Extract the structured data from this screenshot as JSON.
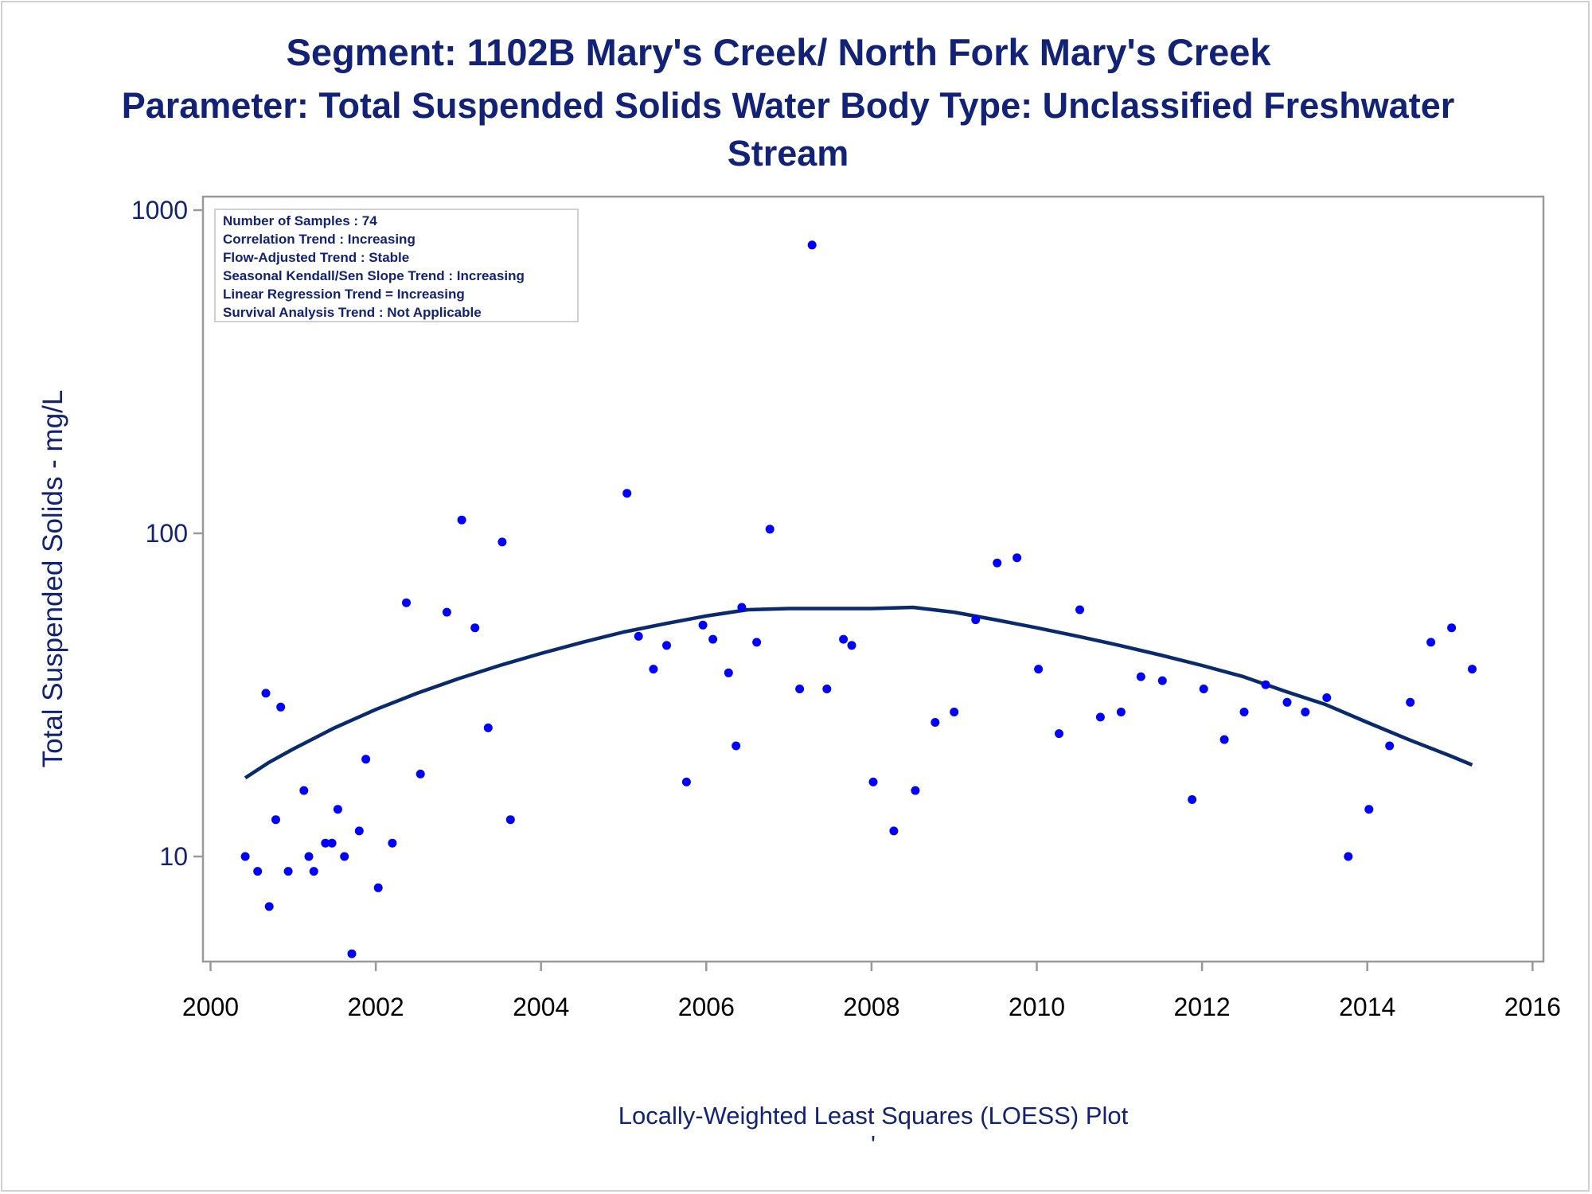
{
  "chart_data": {
    "type": "scatter",
    "title_lines": [
      "Segment: 1102B  Mary's Creek/ North Fork Mary's Creek",
      "Parameter: Total Suspended Solids   Water Body Type: Unclassified Freshwater",
      "Stream"
    ],
    "ylabel": "Total Suspended Solids - mg/L",
    "xlabel": "",
    "footnote": "Locally-Weighted Least Squares (LOESS) Plot",
    "footnote_mark": "'",
    "y_scale": "log",
    "ylim": [
      5,
      1100
    ],
    "xlim": [
      1999.9,
      2016.2
    ],
    "x_ticks": [
      "2000",
      "2002",
      "2004",
      "2006",
      "2008",
      "2010",
      "2012",
      "2014",
      "2016"
    ],
    "y_ticks": [
      "10",
      "100",
      "1000"
    ],
    "grid": false,
    "legend": "none",
    "inset_lines": [
      "Number of Samples : 74",
      "Correlation Trend : Increasing",
      "Flow-Adjusted Trend : Stable",
      "Seasonal Kendall/Sen Slope Trend : Increasing",
      "Linear Regression Trend = Increasing",
      "Survival Analysis Trend : Not Applicable"
    ],
    "inset_placement": "top-left",
    "colors": {
      "points": "#0000ff",
      "curve": "#0a2a6e",
      "text": "#112277",
      "frame": "#999999"
    },
    "series": [
      {
        "kind": "points",
        "x": [
          2000.42,
          2000.57,
          2000.67,
          2000.71,
          2000.79,
          2000.85,
          2000.94,
          2001.13,
          2001.19,
          2001.25,
          2001.39,
          2001.47,
          2001.54,
          2001.62,
          2001.71,
          2001.8,
          2001.88,
          2002.03,
          2002.2,
          2002.37,
          2002.54,
          2002.86,
          2003.04,
          2003.2,
          2003.36,
          2003.53,
          2003.63,
          2005.04,
          2005.18,
          2005.36,
          2005.52,
          2005.76,
          2005.96,
          2006.08,
          2006.27,
          2006.36,
          2006.43,
          2006.61,
          2006.77,
          2007.13,
          2007.28,
          2007.46,
          2007.66,
          2007.76,
          2008.02,
          2008.27,
          2008.53,
          2008.77,
          2009.0,
          2009.26,
          2009.52,
          2009.76,
          2010.02,
          2010.27,
          2010.52,
          2010.77,
          2011.02,
          2011.26,
          2011.52,
          2011.88,
          2012.02,
          2012.27,
          2012.51,
          2012.77,
          2013.03,
          2013.25,
          2013.51,
          2013.77,
          2014.02,
          2014.27,
          2014.52,
          2014.77,
          2015.02,
          2015.27
        ],
        "y": [
          10,
          9,
          32,
          7,
          13,
          29,
          9,
          16,
          10,
          9,
          11,
          11,
          14,
          10,
          5,
          12,
          20,
          8,
          11,
          61,
          18,
          57,
          110,
          51,
          25,
          94,
          13,
          133,
          48,
          38,
          45,
          17,
          52,
          47,
          37,
          22,
          59,
          46,
          103,
          33,
          780,
          33,
          47,
          45,
          17,
          12,
          16,
          26,
          28,
          54,
          81,
          84,
          38,
          24,
          58,
          27,
          28,
          36,
          35,
          15,
          33,
          23,
          28,
          34,
          30,
          28,
          31,
          10,
          14,
          22,
          30,
          46,
          51,
          38
        ]
      },
      {
        "kind": "loess",
        "x": [
          2000.42,
          2000.7,
          2001.0,
          2001.5,
          2002.0,
          2002.5,
          2003.0,
          2003.5,
          2004.0,
          2004.5,
          2005.0,
          2005.5,
          2006.0,
          2006.5,
          2007.0,
          2007.5,
          2008.0,
          2008.5,
          2009.0,
          2009.5,
          2010.0,
          2010.5,
          2011.0,
          2011.5,
          2012.0,
          2012.5,
          2013.0,
          2013.5,
          2014.0,
          2014.5,
          2015.0,
          2015.27
        ],
        "y": [
          17.5,
          19.5,
          21.5,
          25.0,
          28.5,
          32.0,
          35.5,
          39.0,
          42.5,
          46.0,
          49.5,
          52.5,
          55.5,
          58.0,
          58.5,
          58.5,
          58.5,
          59.0,
          57.0,
          54.0,
          51.0,
          48.0,
          45.0,
          42.0,
          39.0,
          36.0,
          32.5,
          29.5,
          26.0,
          23.0,
          20.5,
          19.2
        ]
      }
    ]
  }
}
